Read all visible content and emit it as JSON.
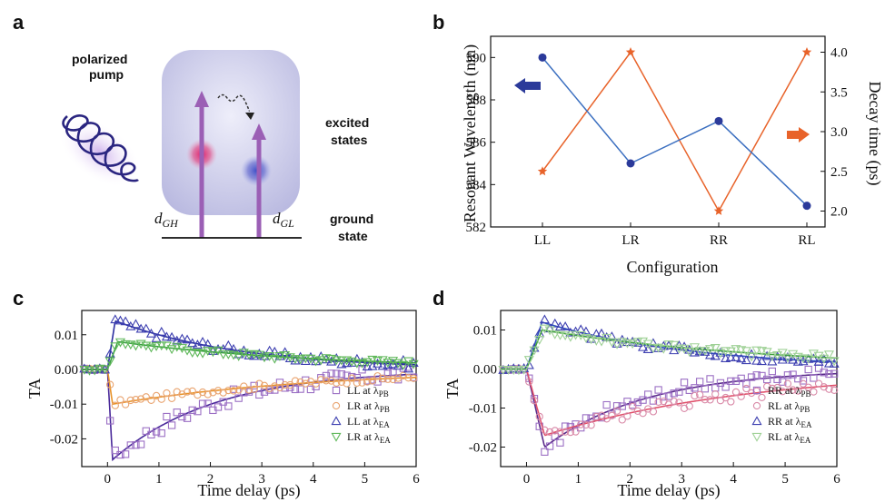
{
  "panels": {
    "a": "a",
    "b": "b",
    "c": "c",
    "d": "d"
  },
  "diagram": {
    "pump_label_line1": "polarized",
    "pump_label_line2": "pump",
    "excited_line1": "excited",
    "excited_line2": "states",
    "ground_line1": "ground",
    "ground_line2": "state",
    "dgh_main": "d",
    "dgh_sub": "GH",
    "dgl_main": "d",
    "dgl_sub": "GL"
  },
  "colors": {
    "blue": "#2b3a9a",
    "orange": "#e8632a",
    "purple_sq": "#9b6fc4",
    "orange_circ": "#e9a470",
    "blue_tri": "#3d3fb0",
    "green_tri": "#5fb85a",
    "pink_circ": "#d98aa8",
    "lightgreen_tri": "#9fd196",
    "arrow": "#9b5fb5"
  },
  "chart_data": [
    {
      "id": "b",
      "type": "line",
      "categories": [
        "LL",
        "LR",
        "RR",
        "RL"
      ],
      "xlabel": "Configuration",
      "ylabel": "Resonant Wavelength (nm)",
      "ylabel_right": "Decay time (ps)",
      "ylim": [
        582,
        591
      ],
      "ylim_right": [
        1.8,
        4.2
      ],
      "yticks": [
        "582",
        "584",
        "586",
        "588",
        "590"
      ],
      "yticks_right": [
        "2.0",
        "2.5",
        "3.0",
        "3.5",
        "4.0"
      ],
      "series": [
        {
          "name": "Resonant Wavelength",
          "axis": "left",
          "values": [
            590,
            585,
            587,
            583
          ],
          "marker": "circle"
        },
        {
          "name": "Decay time",
          "axis": "right",
          "values": [
            2.5,
            4.0,
            2.0,
            4.0
          ],
          "marker": "star"
        }
      ]
    },
    {
      "id": "c",
      "type": "scatter",
      "xlabel": "Time delay (ps)",
      "ylabel": "TA",
      "xlim": [
        -0.5,
        6
      ],
      "ylim": [
        -0.028,
        0.017
      ],
      "xticks": [
        "0",
        "1",
        "2",
        "3",
        "4",
        "5",
        "6"
      ],
      "yticks": [
        "-0.02",
        "-0.01",
        "0.00",
        "0.01"
      ],
      "legend_location": "lower-right",
      "legend": [
        {
          "main": "LL at λ",
          "sub": "PB"
        },
        {
          "main": "LR at λ",
          "sub": "PB"
        },
        {
          "main": "LL at λ",
          "sub": "EA"
        },
        {
          "main": "LR at λ",
          "sub": "EA"
        }
      ],
      "series": [
        {
          "name": "LL at λPB",
          "marker": "square",
          "amplitude": -0.026,
          "decay": 2.0,
          "offset": 0.0,
          "t0": 0.1
        },
        {
          "name": "LR at λPB",
          "marker": "circle",
          "amplitude": -0.01,
          "decay": 4.0,
          "offset": 0.0,
          "t0": 0.1
        },
        {
          "name": "LL at λEA",
          "marker": "triangle-up",
          "amplitude": 0.014,
          "decay": 2.5,
          "offset": 0.0,
          "t0": 0.15
        },
        {
          "name": "LR at λEA",
          "marker": "triangle-down",
          "amplitude": 0.008,
          "decay": 4.0,
          "offset": 0.0,
          "t0": 0.2
        }
      ]
    },
    {
      "id": "d",
      "type": "scatter",
      "xlabel": "Time delay (ps)",
      "ylabel": "TA",
      "xlim": [
        -0.5,
        6
      ],
      "ylim": [
        -0.025,
        0.015
      ],
      "xticks": [
        "0",
        "1",
        "2",
        "3",
        "4",
        "5",
        "6"
      ],
      "yticks": [
        "-0.02",
        "-0.01",
        "0.00",
        "0.01"
      ],
      "legend_location": "lower-right",
      "legend": [
        {
          "main": "RR at λ",
          "sub": "PB"
        },
        {
          "main": "RL at λ",
          "sub": "PB"
        },
        {
          "main": "RR at λ",
          "sub": "EA"
        },
        {
          "main": "RL at λ",
          "sub": "EA"
        }
      ],
      "series": [
        {
          "name": "RR at λPB",
          "marker": "square",
          "amplitude": -0.02,
          "decay": 2.0,
          "offset": 0.0,
          "t0": 0.35
        },
        {
          "name": "RL at λPB",
          "marker": "circle",
          "amplitude": -0.017,
          "decay": 4.0,
          "offset": 0.0,
          "t0": 0.35
        },
        {
          "name": "RR at λEA",
          "marker": "triangle-up",
          "amplitude": 0.012,
          "decay": 3.0,
          "offset": 0.0,
          "t0": 0.3
        },
        {
          "name": "RL at λEA",
          "marker": "triangle-down",
          "amplitude": 0.01,
          "decay": 4.5,
          "offset": 0.0,
          "t0": 0.3
        }
      ]
    }
  ]
}
